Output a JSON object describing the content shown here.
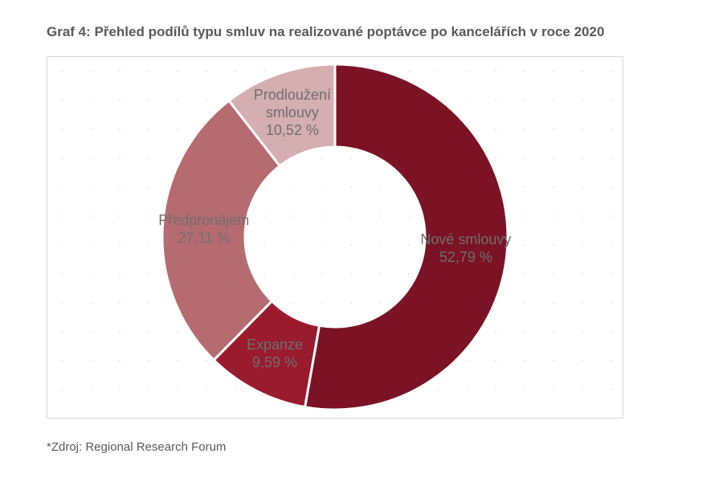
{
  "chart_data": {
    "type": "donut",
    "title": "Graf 4: Přehled podílů typu smluv na realizované poptávce po kancelářích v roce 2020",
    "categories": [
      "Nové smlouvy",
      "Expanze",
      "Předpronájem",
      "Prodloužení smlouvy"
    ],
    "values": [
      52.79,
      9.59,
      27.11,
      10.52
    ],
    "value_labels": [
      "52,79 %",
      "9,59 %",
      "27,11 %",
      "10,52 %"
    ],
    "colors": [
      "#7b1324",
      "#9b1b2e",
      "#b56b70",
      "#d4aeb1"
    ],
    "source": "*Zdroj: Regional Research Forum"
  }
}
